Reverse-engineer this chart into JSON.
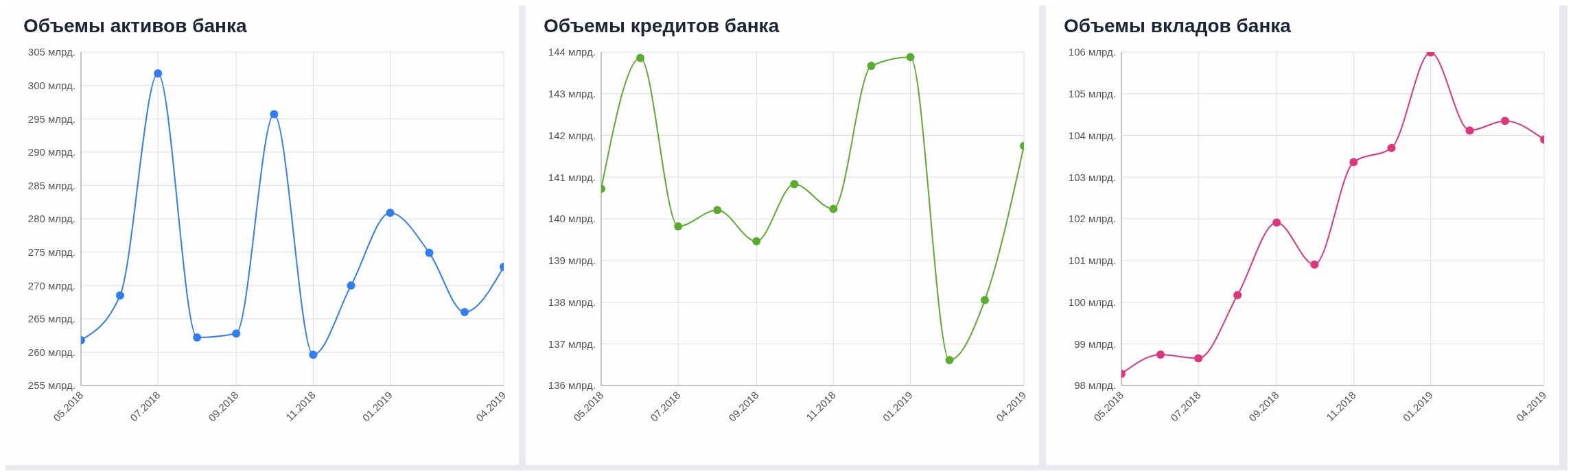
{
  "chart_data": [
    {
      "type": "line",
      "title": "Объемы активов банка",
      "x": [
        "2018-05",
        "2018-06",
        "2018-07",
        "2018-08",
        "2018-09",
        "2018-10",
        "2018-11",
        "2018-12",
        "2019-01",
        "2019-02",
        "2019-03",
        "2019-04"
      ],
      "series": [
        {
          "color": "#2f7ef5",
          "values": [
            261.8,
            268.5,
            301.8,
            262.2,
            262.8,
            295.7,
            259.6,
            270.0,
            280.9,
            274.9,
            266.0,
            272.8
          ]
        }
      ],
      "xlim": [
        "2018-05",
        "2019-04"
      ],
      "xticks": [
        {
          "value": "2018-05",
          "label": "05.2018"
        },
        {
          "value": "2018-07",
          "label": "07.2018"
        },
        {
          "value": "2018-09",
          "label": "09.2018"
        },
        {
          "value": "2018-11",
          "label": "11.2018"
        },
        {
          "value": "2019-01",
          "label": "01.2019"
        },
        {
          "value": "2019-04",
          "label": "04.2019"
        }
      ],
      "ylim": [
        255,
        305
      ],
      "yticks": [
        {
          "value": 255,
          "label": "255 млрд."
        },
        {
          "value": 260,
          "label": "260 млрд."
        },
        {
          "value": 265,
          "label": "265 млрд."
        },
        {
          "value": 270,
          "label": "270 млрд."
        },
        {
          "value": 275,
          "label": "275 млрд."
        },
        {
          "value": 280,
          "label": "280 млрд."
        },
        {
          "value": 285,
          "label": "285 млрд."
        },
        {
          "value": 290,
          "label": "290 млрд."
        },
        {
          "value": 295,
          "label": "295 млрд."
        },
        {
          "value": 300,
          "label": "300 млрд."
        },
        {
          "value": 305,
          "label": "305 млрд."
        }
      ],
      "grid": true,
      "marker": "circle",
      "line_style": "solid"
    },
    {
      "type": "line",
      "title": "Объемы кредитов банка",
      "x": [
        "2018-05",
        "2018-06",
        "2018-07",
        "2018-08",
        "2018-09",
        "2018-10",
        "2018-11",
        "2018-12",
        "2019-01",
        "2019-02",
        "2019-03",
        "2019-04"
      ],
      "series": [
        {
          "color": "#5aad2c",
          "values": [
            140.72,
            143.86,
            139.82,
            140.21,
            139.46,
            140.83,
            140.24,
            143.67,
            143.88,
            136.61,
            138.05,
            141.75
          ]
        }
      ],
      "xlim": [
        "2018-05",
        "2019-04"
      ],
      "xticks": [
        {
          "value": "2018-05",
          "label": "05.2018"
        },
        {
          "value": "2018-07",
          "label": "07.2018"
        },
        {
          "value": "2018-09",
          "label": "09.2018"
        },
        {
          "value": "2018-11",
          "label": "11.2018"
        },
        {
          "value": "2019-01",
          "label": "01.2019"
        },
        {
          "value": "2019-04",
          "label": "04.2019"
        }
      ],
      "ylim": [
        136,
        144
      ],
      "yticks": [
        {
          "value": 136,
          "label": "136 млрд."
        },
        {
          "value": 137,
          "label": "137 млрд."
        },
        {
          "value": 138,
          "label": "138 млрд."
        },
        {
          "value": 139,
          "label": "139 млрд."
        },
        {
          "value": 140,
          "label": "140 млрд."
        },
        {
          "value": 141,
          "label": "141 млрд."
        },
        {
          "value": 142,
          "label": "142 млрд."
        },
        {
          "value": 143,
          "label": "143 млрд."
        },
        {
          "value": 144,
          "label": "144 млрд."
        }
      ],
      "grid": true,
      "marker": "circle",
      "line_style": "solid"
    },
    {
      "type": "line",
      "title": "Объемы вкладов банка",
      "x": [
        "2018-05",
        "2018-06",
        "2018-07",
        "2018-08",
        "2018-09",
        "2018-10",
        "2018-11",
        "2018-12",
        "2019-01",
        "2019-02",
        "2019-03",
        "2019-04"
      ],
      "series": [
        {
          "color": "#e0357a",
          "values": [
            98.28,
            98.74,
            98.65,
            100.17,
            101.91,
            100.9,
            103.36,
            103.7,
            105.99,
            104.12,
            104.35,
            103.9
          ]
        }
      ],
      "xlim": [
        "2018-05",
        "2019-04"
      ],
      "xticks": [
        {
          "value": "2018-05",
          "label": "05.2018"
        },
        {
          "value": "2018-07",
          "label": "07.2018"
        },
        {
          "value": "2018-09",
          "label": "09.2018"
        },
        {
          "value": "2018-11",
          "label": "11.2018"
        },
        {
          "value": "2019-01",
          "label": "01.2019"
        },
        {
          "value": "2019-04",
          "label": "04.2019"
        }
      ],
      "ylim": [
        98,
        106
      ],
      "yticks": [
        {
          "value": 98,
          "label": "98 млрд."
        },
        {
          "value": 99,
          "label": "99 млрд."
        },
        {
          "value": 100,
          "label": "100 млрд."
        },
        {
          "value": 101,
          "label": "101 млрд."
        },
        {
          "value": 102,
          "label": "102 млрд."
        },
        {
          "value": 103,
          "label": "103 млрд."
        },
        {
          "value": 104,
          "label": "104 млрд."
        },
        {
          "value": 105,
          "label": "105 млрд."
        },
        {
          "value": 106,
          "label": "106 млрд."
        }
      ],
      "grid": true,
      "marker": "circle",
      "line_style": "solid"
    }
  ]
}
